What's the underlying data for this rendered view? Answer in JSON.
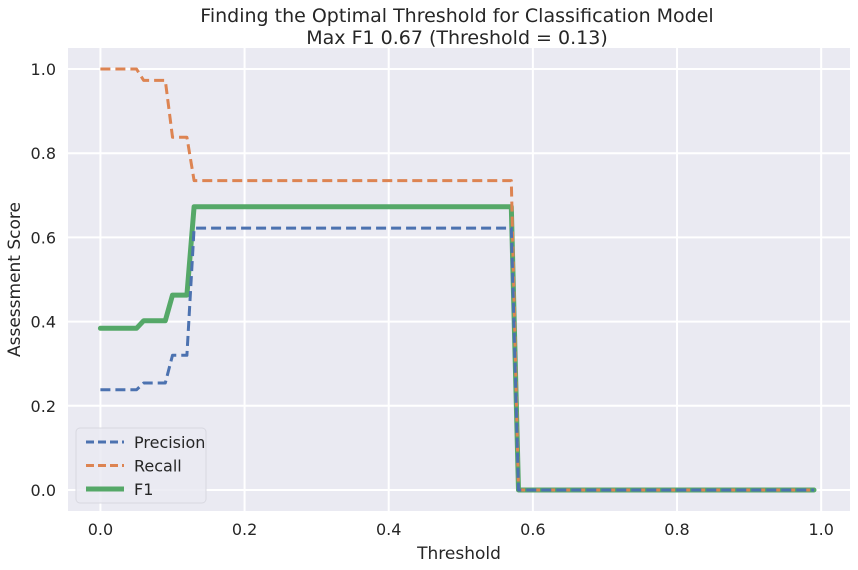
{
  "chart_data": {
    "type": "line",
    "title": "Finding the Optimal Threshold for Classification Model",
    "subtitle": "Max F1 0.67 (Threshold = 0.13)",
    "xlabel": "Threshold",
    "ylabel": "Assessment Score",
    "xlim": [
      -0.045,
      1.04
    ],
    "ylim": [
      -0.05,
      1.05
    ],
    "xticks": [
      0.0,
      0.2,
      0.4,
      0.6,
      0.8,
      1.0
    ],
    "xtick_labels": [
      "0.0",
      "0.2",
      "0.4",
      "0.6",
      "0.8",
      "1.0"
    ],
    "yticks": [
      0.0,
      0.2,
      0.4,
      0.6,
      0.8,
      1.0
    ],
    "ytick_labels": [
      "0.0",
      "0.2",
      "0.4",
      "0.6",
      "0.8",
      "1.0"
    ],
    "grid": true,
    "legend_position": "lower-left",
    "background": "#EAEAF2",
    "series": [
      {
        "name": "Precision",
        "color": "#4C72B0",
        "style": "dashed",
        "points": [
          [
            0.0,
            0.238
          ],
          [
            0.05,
            0.238
          ],
          [
            0.06,
            0.254
          ],
          [
            0.09,
            0.254
          ],
          [
            0.1,
            0.32
          ],
          [
            0.12,
            0.32
          ],
          [
            0.13,
            0.622
          ],
          [
            0.57,
            0.622
          ],
          [
            0.58,
            0.0
          ],
          [
            0.99,
            0.0
          ]
        ]
      },
      {
        "name": "Recall",
        "color": "#DD8452",
        "style": "dashed",
        "points": [
          [
            0.0,
            1.0
          ],
          [
            0.05,
            1.0
          ],
          [
            0.06,
            0.973
          ],
          [
            0.09,
            0.973
          ],
          [
            0.1,
            0.838
          ],
          [
            0.12,
            0.838
          ],
          [
            0.13,
            0.735
          ],
          [
            0.57,
            0.735
          ],
          [
            0.58,
            0.0
          ],
          [
            0.99,
            0.0
          ]
        ]
      },
      {
        "name": "F1",
        "color": "#55A868",
        "style": "solid",
        "points": [
          [
            0.0,
            0.384
          ],
          [
            0.05,
            0.384
          ],
          [
            0.06,
            0.402
          ],
          [
            0.09,
            0.402
          ],
          [
            0.1,
            0.463
          ],
          [
            0.12,
            0.463
          ],
          [
            0.13,
            0.673
          ],
          [
            0.57,
            0.673
          ],
          [
            0.58,
            0.0
          ],
          [
            0.99,
            0.0
          ]
        ]
      }
    ]
  }
}
